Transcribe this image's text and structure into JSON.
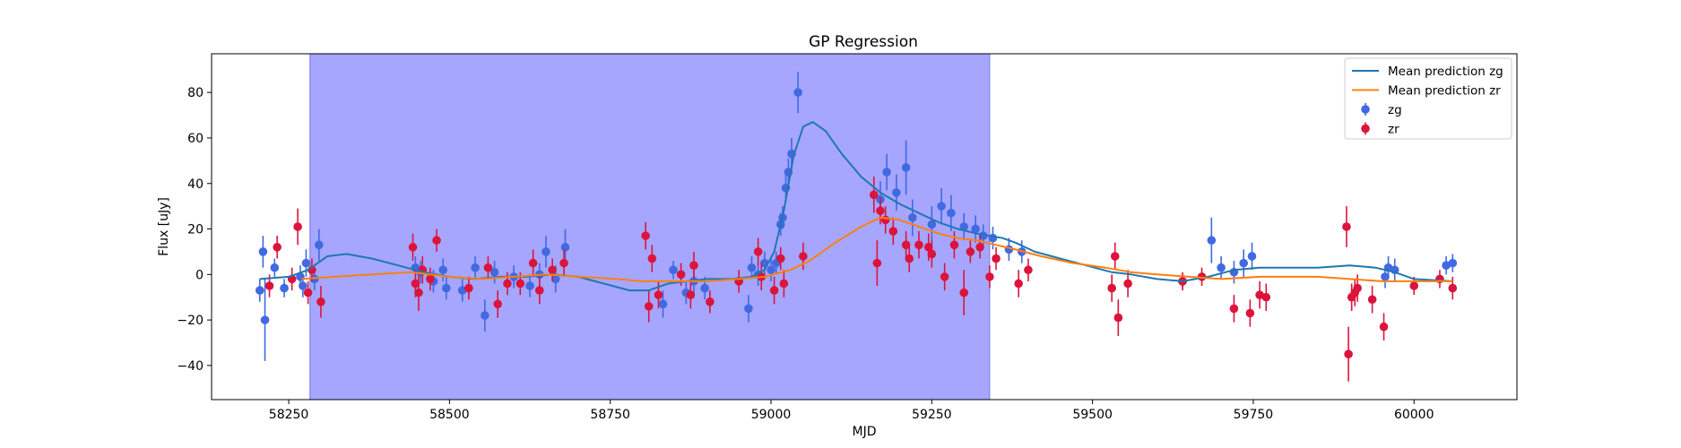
{
  "chart_data": {
    "type": "scatter",
    "title": "GP Regression",
    "xlabel": "MJD",
    "ylabel": "Flux [uJy]",
    "xlim": [
      58130,
      60160
    ],
    "ylim": [
      -55,
      97
    ],
    "x_ticks": [
      58250,
      58500,
      58750,
      59000,
      59250,
      59500,
      59750,
      60000
    ],
    "y_ticks": [
      -40,
      -20,
      0,
      20,
      40,
      60,
      80
    ],
    "grid": false,
    "legend_position": "top-right",
    "shaded_region": {
      "x_start": 58283,
      "x_end": 59340,
      "color": "#a6a6ff"
    },
    "legend": [
      {
        "label": "Mean prediction zg",
        "kind": "line",
        "color": "#1f77b4"
      },
      {
        "label": "Mean prediction zr",
        "kind": "line",
        "color": "#ff7f0e"
      },
      {
        "label": "zg",
        "kind": "errorbar",
        "color": "#4169e1"
      },
      {
        "label": "zr",
        "kind": "errorbar",
        "color": "#dc143c"
      }
    ],
    "series": [
      {
        "name": "Mean prediction zg",
        "type": "line",
        "color": "#1f77b4",
        "points": [
          [
            58205,
            -2
          ],
          [
            58250,
            -1
          ],
          [
            58280,
            2
          ],
          [
            58310,
            8
          ],
          [
            58340,
            9
          ],
          [
            58380,
            7
          ],
          [
            58420,
            4
          ],
          [
            58460,
            1
          ],
          [
            58500,
            -1
          ],
          [
            58540,
            -2
          ],
          [
            58580,
            -1
          ],
          [
            58620,
            -1
          ],
          [
            58660,
            0
          ],
          [
            58700,
            -1
          ],
          [
            58740,
            -4
          ],
          [
            58780,
            -7
          ],
          [
            58810,
            -7
          ],
          [
            58840,
            -4
          ],
          [
            58870,
            -3
          ],
          [
            58900,
            -2
          ],
          [
            58940,
            -2
          ],
          [
            58970,
            -1
          ],
          [
            58990,
            2
          ],
          [
            59005,
            10
          ],
          [
            59020,
            28
          ],
          [
            59035,
            52
          ],
          [
            59050,
            65
          ],
          [
            59065,
            67
          ],
          [
            59085,
            63
          ],
          [
            59110,
            53
          ],
          [
            59140,
            43
          ],
          [
            59170,
            36
          ],
          [
            59200,
            31
          ],
          [
            59230,
            27
          ],
          [
            59260,
            23
          ],
          [
            59290,
            20
          ],
          [
            59320,
            18
          ],
          [
            59340,
            17
          ],
          [
            59360,
            16
          ],
          [
            59380,
            14
          ],
          [
            59410,
            10
          ],
          [
            59450,
            7
          ],
          [
            59490,
            4
          ],
          [
            59530,
            1
          ],
          [
            59560,
            0
          ],
          [
            59600,
            -2
          ],
          [
            59640,
            -3
          ],
          [
            59680,
            -1
          ],
          [
            59720,
            2
          ],
          [
            59760,
            3
          ],
          [
            59800,
            3
          ],
          [
            59850,
            3
          ],
          [
            59900,
            4
          ],
          [
            59940,
            3
          ],
          [
            59970,
            1
          ],
          [
            60000,
            -2
          ],
          [
            60060,
            -3
          ]
        ]
      },
      {
        "name": "Mean prediction zr",
        "type": "line",
        "color": "#ff7f0e",
        "points": [
          [
            58270,
            -2
          ],
          [
            58320,
            -1
          ],
          [
            58380,
            0
          ],
          [
            58440,
            1
          ],
          [
            58500,
            -1
          ],
          [
            58550,
            -2
          ],
          [
            58600,
            -1
          ],
          [
            58650,
            0
          ],
          [
            58700,
            -1
          ],
          [
            58760,
            -2
          ],
          [
            58800,
            -3
          ],
          [
            58850,
            -3
          ],
          [
            58900,
            -3
          ],
          [
            58950,
            -2
          ],
          [
            58990,
            -1
          ],
          [
            59030,
            2
          ],
          [
            59060,
            6
          ],
          [
            59100,
            14
          ],
          [
            59140,
            21
          ],
          [
            59170,
            25
          ],
          [
            59200,
            24
          ],
          [
            59230,
            21
          ],
          [
            59260,
            18
          ],
          [
            59290,
            16
          ],
          [
            59320,
            15
          ],
          [
            59350,
            13
          ],
          [
            59380,
            11
          ],
          [
            59420,
            8
          ],
          [
            59470,
            5
          ],
          [
            59520,
            3
          ],
          [
            59560,
            1
          ],
          [
            59600,
            0
          ],
          [
            59650,
            -1
          ],
          [
            59700,
            -2
          ],
          [
            59760,
            -1
          ],
          [
            59800,
            -1
          ],
          [
            59850,
            -1
          ],
          [
            59900,
            -2
          ],
          [
            59950,
            -3
          ],
          [
            60000,
            -3
          ],
          [
            60060,
            -3
          ]
        ]
      },
      {
        "name": "zg",
        "type": "errorbar",
        "color": "#4169e1",
        "points": [
          [
            58205,
            -7,
            5
          ],
          [
            58210,
            10,
            7
          ],
          [
            58213,
            -20,
            18
          ],
          [
            58228,
            3,
            4
          ],
          [
            58243,
            -6,
            4
          ],
          [
            58268,
            -1,
            5
          ],
          [
            58272,
            -5,
            5
          ],
          [
            58277,
            5,
            6
          ],
          [
            58290,
            -2,
            5
          ],
          [
            58297,
            13,
            7
          ],
          [
            58447,
            3,
            5
          ],
          [
            58455,
            1,
            5
          ],
          [
            58475,
            -3,
            5
          ],
          [
            58490,
            2,
            5
          ],
          [
            58495,
            -6,
            5
          ],
          [
            58520,
            -7,
            5
          ],
          [
            58540,
            3,
            5
          ],
          [
            58555,
            -18,
            7
          ],
          [
            58570,
            1,
            5
          ],
          [
            58600,
            -1,
            5
          ],
          [
            58625,
            -5,
            5
          ],
          [
            58640,
            0,
            5
          ],
          [
            58650,
            10,
            7
          ],
          [
            58665,
            -2,
            6
          ],
          [
            58680,
            12,
            8
          ],
          [
            58832,
            -13,
            6
          ],
          [
            58848,
            2,
            4
          ],
          [
            58868,
            -8,
            5
          ],
          [
            58880,
            -3,
            5
          ],
          [
            58897,
            -6,
            5
          ],
          [
            58965,
            -15,
            6
          ],
          [
            58970,
            3,
            5
          ],
          [
            58980,
            0,
            5
          ],
          [
            58990,
            5,
            5
          ],
          [
            59000,
            2,
            5
          ],
          [
            59008,
            5,
            5
          ],
          [
            59015,
            22,
            5
          ],
          [
            59018,
            25,
            5
          ],
          [
            59023,
            38,
            6
          ],
          [
            59027,
            45,
            6
          ],
          [
            59032,
            53,
            7
          ],
          [
            59042,
            80,
            9
          ],
          [
            59170,
            33,
            8
          ],
          [
            59180,
            45,
            8
          ],
          [
            59195,
            36,
            8
          ],
          [
            59210,
            47,
            12
          ],
          [
            59220,
            25,
            8
          ],
          [
            59250,
            22,
            8
          ],
          [
            59265,
            30,
            8
          ],
          [
            59280,
            27,
            8
          ],
          [
            59300,
            21,
            6
          ],
          [
            59318,
            20,
            6
          ],
          [
            59330,
            17,
            5
          ],
          [
            59345,
            16,
            5
          ],
          [
            59370,
            11,
            5
          ],
          [
            59390,
            10,
            5
          ],
          [
            59640,
            -3,
            3
          ],
          [
            59685,
            15,
            10
          ],
          [
            59700,
            3,
            5
          ],
          [
            59720,
            1,
            5
          ],
          [
            59735,
            5,
            6
          ],
          [
            59748,
            8,
            6
          ],
          [
            59955,
            -1,
            5
          ],
          [
            59960,
            3,
            5
          ],
          [
            59970,
            2,
            5
          ],
          [
            60050,
            4,
            4
          ],
          [
            60060,
            5,
            4
          ]
        ]
      },
      {
        "name": "zr",
        "type": "errorbar",
        "color": "#dc143c",
        "points": [
          [
            58220,
            -5,
            5
          ],
          [
            58232,
            12,
            5
          ],
          [
            58255,
            -2,
            5
          ],
          [
            58264,
            21,
            8
          ],
          [
            58280,
            -8,
            5
          ],
          [
            58286,
            2,
            5
          ],
          [
            58300,
            -12,
            7
          ],
          [
            58443,
            12,
            6
          ],
          [
            58447,
            -4,
            6
          ],
          [
            58452,
            -8,
            8
          ],
          [
            58458,
            2,
            6
          ],
          [
            58470,
            -2,
            5
          ],
          [
            58480,
            15,
            5
          ],
          [
            58530,
            -6,
            5
          ],
          [
            58560,
            3,
            5
          ],
          [
            58575,
            -13,
            6
          ],
          [
            58590,
            -4,
            5
          ],
          [
            58610,
            -4,
            5
          ],
          [
            58630,
            5,
            6
          ],
          [
            58640,
            -7,
            6
          ],
          [
            58660,
            2,
            5
          ],
          [
            58678,
            5,
            6
          ],
          [
            58805,
            17,
            6
          ],
          [
            58810,
            -14,
            7
          ],
          [
            58815,
            7,
            6
          ],
          [
            58825,
            -9,
            6
          ],
          [
            58860,
            0,
            5
          ],
          [
            58875,
            -9,
            6
          ],
          [
            58880,
            4,
            6
          ],
          [
            58905,
            -12,
            5
          ],
          [
            58950,
            -3,
            5
          ],
          [
            58980,
            10,
            6
          ],
          [
            58985,
            -1,
            6
          ],
          [
            59005,
            -7,
            6
          ],
          [
            59015,
            7,
            5
          ],
          [
            59020,
            -4,
            6
          ],
          [
            59050,
            8,
            6
          ],
          [
            59160,
            35,
            8
          ],
          [
            59165,
            5,
            10
          ],
          [
            59170,
            28,
            6
          ],
          [
            59178,
            24,
            6
          ],
          [
            59190,
            19,
            6
          ],
          [
            59210,
            13,
            6
          ],
          [
            59215,
            7,
            6
          ],
          [
            59230,
            13,
            6
          ],
          [
            59245,
            12,
            6
          ],
          [
            59250,
            9,
            6
          ],
          [
            59270,
            -1,
            6
          ],
          [
            59285,
            13,
            6
          ],
          [
            59300,
            -8,
            10
          ],
          [
            59310,
            10,
            5
          ],
          [
            59325,
            12,
            5
          ],
          [
            59340,
            -1,
            5
          ],
          [
            59350,
            7,
            5
          ],
          [
            59385,
            -4,
            6
          ],
          [
            59400,
            2,
            5
          ],
          [
            59530,
            -6,
            6
          ],
          [
            59535,
            8,
            6
          ],
          [
            59540,
            -19,
            8
          ],
          [
            59555,
            -4,
            6
          ],
          [
            59640,
            -3,
            4
          ],
          [
            59670,
            -1,
            4
          ],
          [
            59720,
            -15,
            6
          ],
          [
            59745,
            -17,
            6
          ],
          [
            59760,
            -9,
            6
          ],
          [
            59770,
            -10,
            6
          ],
          [
            59895,
            21,
            9
          ],
          [
            59898,
            -35,
            12
          ],
          [
            59903,
            -10,
            6
          ],
          [
            59908,
            -8,
            6
          ],
          [
            59912,
            -6,
            6
          ],
          [
            59935,
            -11,
            6
          ],
          [
            59953,
            -23,
            6
          ],
          [
            60000,
            -5,
            4
          ],
          [
            60040,
            -2,
            4
          ],
          [
            60060,
            -6,
            5
          ]
        ]
      }
    ]
  }
}
